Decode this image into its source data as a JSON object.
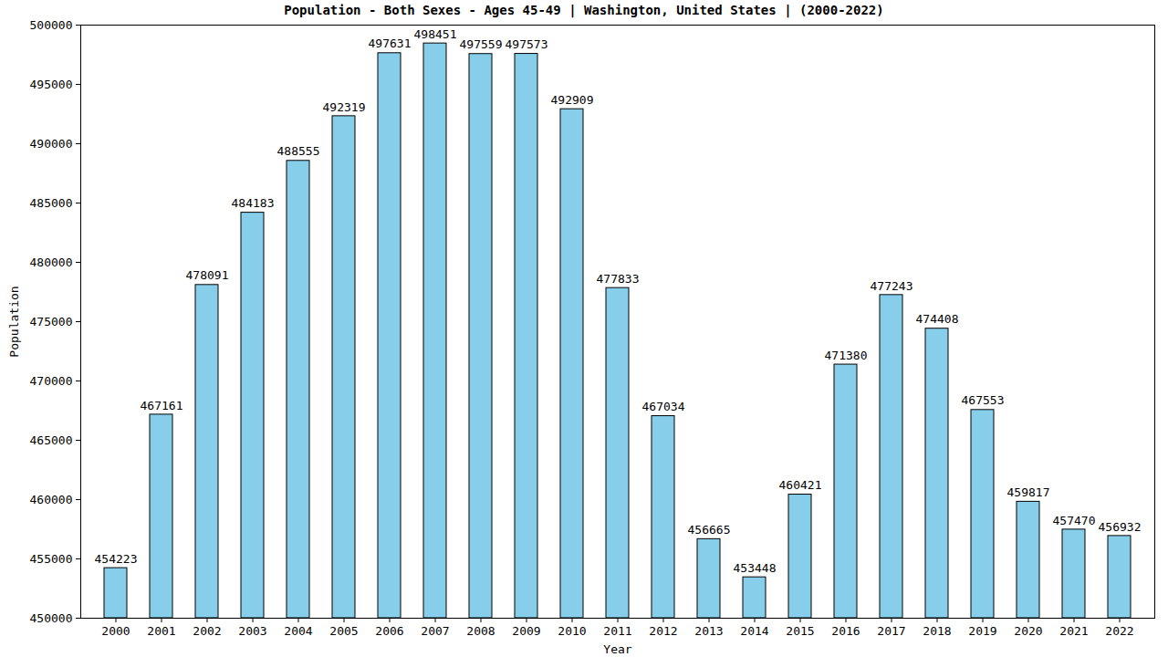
{
  "chart_data": {
    "type": "bar",
    "title": "Population - Both Sexes - Ages 45-49 | Washington, United States |  (2000-2022)",
    "x_label": "Year",
    "y_label": "Population",
    "categories": [
      "2000",
      "2001",
      "2002",
      "2003",
      "2004",
      "2005",
      "2006",
      "2007",
      "2008",
      "2009",
      "2010",
      "2011",
      "2012",
      "2013",
      "2014",
      "2015",
      "2016",
      "2017",
      "2018",
      "2019",
      "2020",
      "2021",
      "2022"
    ],
    "values": [
      454223,
      467161,
      478091,
      484183,
      488555,
      492319,
      497631,
      498451,
      497559,
      497573,
      492909,
      477833,
      467034,
      456665,
      453448,
      460421,
      471380,
      477243,
      474408,
      467553,
      459817,
      457470,
      456932
    ],
    "color": "#87ceeb",
    "ylim": [
      450000,
      500000
    ],
    "yticks": [
      450000,
      455000,
      460000,
      465000,
      470000,
      475000,
      480000,
      485000,
      490000,
      495000,
      500000
    ],
    "grid": false,
    "data_labels": true
  }
}
